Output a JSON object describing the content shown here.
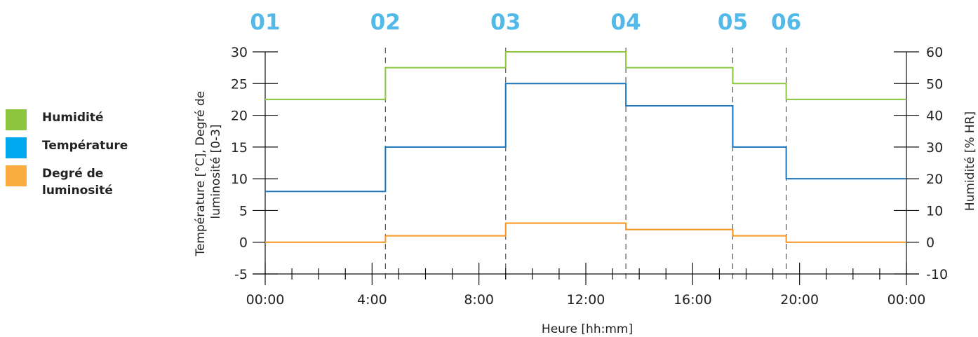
{
  "colors": {
    "humidity": "#8cc63f",
    "temperature": "#1a75bc",
    "luminosity": "#f7941d",
    "phase_label": "#52b9e9",
    "axis": "#111111"
  },
  "legend": [
    {
      "label": "Humidité",
      "color": "#8cc63f"
    },
    {
      "label": "Température",
      "color": "#00a8f0"
    },
    {
      "label": "Degré de luminosité",
      "color": "#fbae3f"
    }
  ],
  "axis_titles": {
    "x": "Heure [hh:mm]",
    "y_left": "Température [°C], Degré de luminosité [0-3]",
    "y_right": "Humidité [% HR]"
  },
  "chart_data": {
    "type": "line",
    "line_shape": "step",
    "x_range": [
      "00:00",
      "24:00"
    ],
    "x_ticks": [
      "00:00",
      "4:00",
      "8:00",
      "12:00",
      "16:00",
      "20:00",
      "00:00"
    ],
    "x_tick_hours": [
      0,
      4,
      8,
      12,
      16,
      20,
      24
    ],
    "minor_tick_hours": [
      1,
      2,
      3,
      5,
      6,
      7,
      9,
      10,
      11,
      13,
      14,
      15,
      17,
      18,
      19,
      21,
      22,
      23
    ],
    "y_left": {
      "label": "Température [°C], Degré de luminosité [0-3]",
      "range": [
        -5,
        30
      ],
      "ticks": [
        -5,
        0,
        5,
        10,
        15,
        20,
        25,
        30
      ]
    },
    "y_right": {
      "label": "Humidité [% HR]",
      "range": [
        -10,
        60
      ],
      "ticks": [
        -10,
        0,
        10,
        20,
        30,
        40,
        50,
        60
      ]
    },
    "xlabel": "Heure [hh:mm]",
    "phases": [
      {
        "label": "01",
        "start_hour": 0
      },
      {
        "label": "02",
        "start_hour": 4.5
      },
      {
        "label": "03",
        "start_hour": 9
      },
      {
        "label": "04",
        "start_hour": 13.5
      },
      {
        "label": "05",
        "start_hour": 17.5
      },
      {
        "label": "06",
        "start_hour": 19.5
      }
    ],
    "series": [
      {
        "name": "Humidité",
        "axis": "right",
        "color": "#8cc63f",
        "boundaries_hours": [
          0,
          4.5,
          9,
          13.5,
          17.5,
          19.5,
          24
        ],
        "values": [
          45,
          55,
          60,
          55,
          50,
          45
        ]
      },
      {
        "name": "Température",
        "axis": "left",
        "color": "#1a75bc",
        "boundaries_hours": [
          0,
          4.5,
          9,
          13.5,
          17.5,
          19.5,
          24
        ],
        "values": [
          8,
          15,
          25,
          21.5,
          15,
          10
        ]
      },
      {
        "name": "Degré de luminosité",
        "axis": "left",
        "color": "#f7941d",
        "boundaries_hours": [
          0,
          4.5,
          9,
          13.5,
          17.5,
          19.5,
          24
        ],
        "values": [
          0,
          1,
          3,
          2,
          1,
          0
        ]
      }
    ],
    "grid": false
  }
}
